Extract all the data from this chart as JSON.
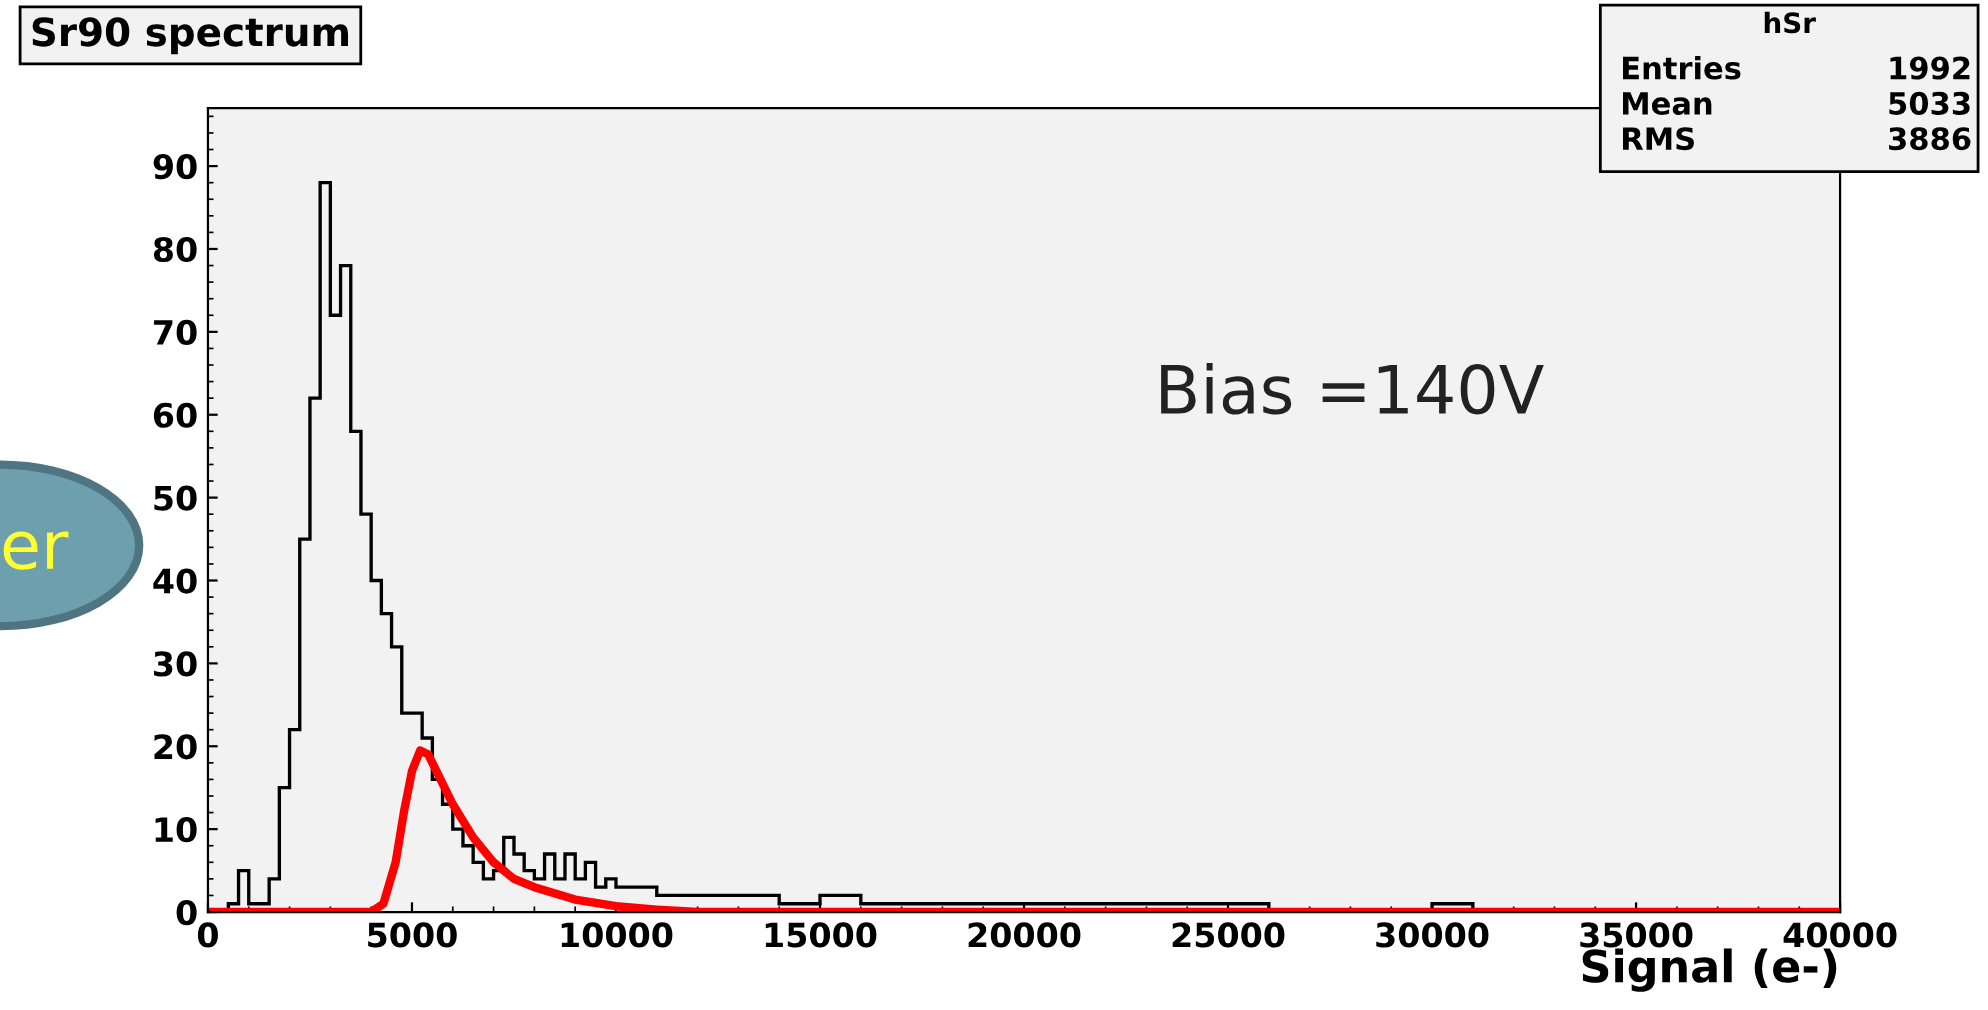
{
  "chart_data": {
    "type": "histogram",
    "title": "Sr90 spectrum",
    "xlabel": "Signal (e-)",
    "xlim": [
      0,
      40000
    ],
    "xticks": [
      0,
      5000,
      10000,
      15000,
      20000,
      25000,
      30000,
      35000,
      40000
    ],
    "ylim": [
      0,
      97
    ],
    "yticks": [
      0,
      10,
      20,
      30,
      40,
      50,
      60,
      70,
      80,
      90
    ],
    "grid": false,
    "legend": false,
    "series": [
      {
        "color": "#000000",
        "bins": [
          0,
          250,
          500,
          750,
          1000,
          1250,
          1500,
          1750,
          2000,
          2250,
          2500,
          2750,
          3000,
          3250,
          3500,
          3750,
          4000,
          4250,
          4500,
          4750,
          5000,
          5250,
          5500,
          5750,
          6000,
          6250,
          6500,
          6750,
          7000,
          7250,
          7500,
          7750,
          8000,
          8250,
          8500,
          8750,
          9000,
          9250,
          9500,
          9750,
          10000,
          11000,
          12000,
          13000,
          14000,
          15000,
          16000,
          17000,
          18000,
          19000,
          20000,
          21000,
          22000,
          23000,
          24000,
          25000,
          26000,
          27000,
          28000,
          29000,
          30000,
          31000,
          32000,
          33000,
          34000,
          35000,
          36000,
          37000,
          38000,
          39000,
          40000
        ],
        "values": [
          0,
          0,
          1,
          5,
          1,
          1,
          4,
          15,
          22,
          45,
          62,
          88,
          72,
          78,
          58,
          48,
          40,
          36,
          32,
          24,
          24,
          21,
          16,
          13,
          10,
          8,
          6,
          4,
          5,
          9,
          7,
          5,
          4,
          7,
          4,
          7,
          4,
          6,
          3,
          4,
          3,
          2,
          2,
          2,
          1,
          2,
          1,
          1,
          1,
          1,
          1,
          1,
          1,
          1,
          1,
          1,
          0,
          0,
          0,
          0,
          1,
          0,
          0,
          0,
          0,
          0,
          0,
          0,
          0,
          0
        ]
      },
      {
        "type": "line",
        "color": "#ff0000",
        "x": [
          0,
          4000,
          4300,
          4600,
          4800,
          5000,
          5200,
          5400,
          5600,
          6000,
          6500,
          7000,
          7500,
          8000,
          9000,
          10000,
          11000,
          12000,
          40000
        ],
        "values": [
          0,
          0,
          1,
          6,
          12,
          17,
          19.5,
          19,
          17,
          13,
          9,
          6,
          4,
          3,
          1.5,
          0.7,
          0.3,
          0,
          0
        ]
      }
    ],
    "annotations": [
      "Bias =140V",
      "hSr",
      "Entries",
      "1992",
      "Mean",
      "5033",
      "RMS",
      "3886",
      "er"
    ]
  }
}
